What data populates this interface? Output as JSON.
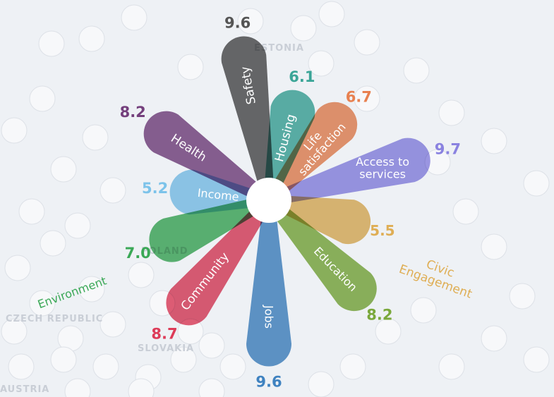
{
  "countries": [
    "ESTONIA",
    "POLAND",
    "CZECH REPUBLIC",
    "SLOVAKIA",
    "AUSTRIA"
  ],
  "chart_data": {
    "type": "flower",
    "title": "",
    "center": "",
    "petals": [
      {
        "name": "Safety",
        "value": 9.6,
        "color": "#4a4a4a"
      },
      {
        "name": "Housing",
        "value": 6.1,
        "color": "#3aa597"
      },
      {
        "name": "Life satisfaction",
        "value": 6.7,
        "color": "#e8804f"
      },
      {
        "name": "Access to services",
        "value": 9.7,
        "color": "#8a82e0"
      },
      {
        "name": "Civic Engagement",
        "value": 5.5,
        "color": "#dfae55"
      },
      {
        "name": "Education",
        "value": 8.2,
        "color": "#7aa83b"
      },
      {
        "name": "Jobs",
        "value": 9.6,
        "color": "#3f82c0"
      },
      {
        "name": "Community",
        "value": 8.7,
        "color": "#dd3b58"
      },
      {
        "name": "Environment",
        "value": 7.0,
        "color": "#3aa856"
      },
      {
        "name": "Income",
        "value": 5.2,
        "color": "#7cc3ea"
      },
      {
        "name": "Health",
        "value": 8.2,
        "color": "#743f7c"
      }
    ]
  }
}
